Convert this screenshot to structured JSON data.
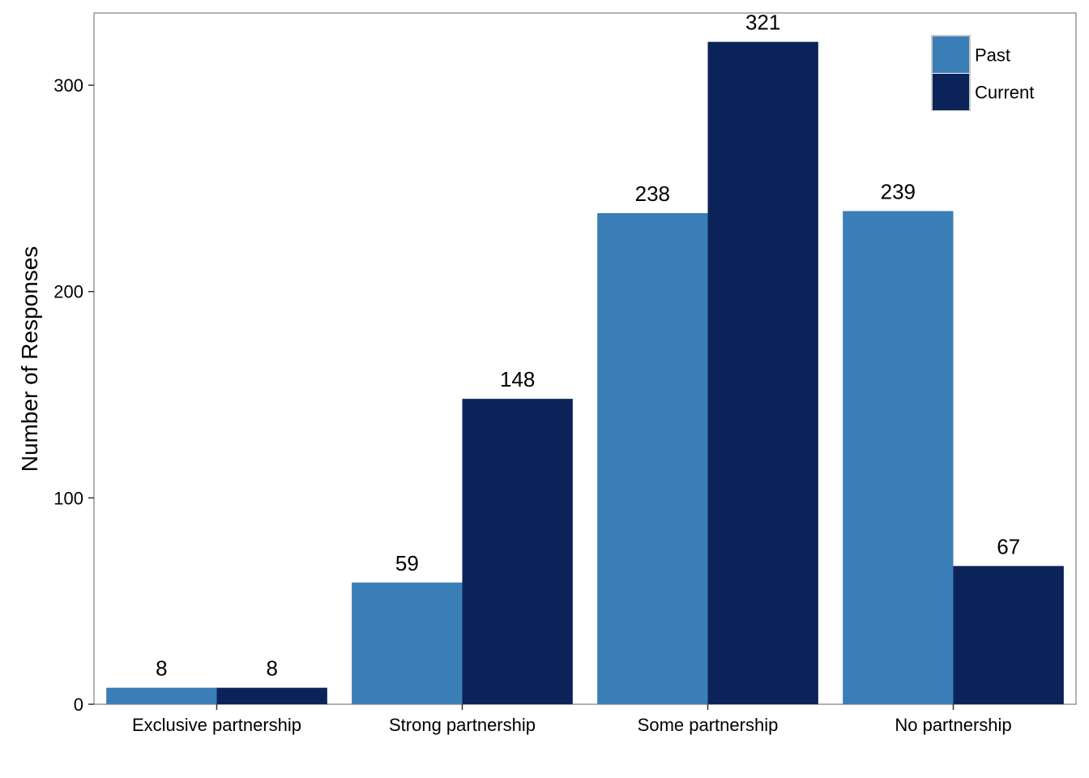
{
  "chart_data": {
    "type": "bar",
    "title": "",
    "xlabel": "",
    "ylabel": "Number of Responses",
    "categories": [
      "Exclusive partnership",
      "Strong partnership",
      "Some partnership",
      "No partnership"
    ],
    "series": [
      {
        "name": "Past",
        "color": "#3a7eb8",
        "values": [
          8,
          59,
          238,
          239
        ]
      },
      {
        "name": "Current",
        "color": "#0c2359",
        "values": [
          8,
          148,
          321,
          67
        ]
      }
    ],
    "ylim": [
      0,
      335
    ],
    "yticks": [
      0,
      100,
      200,
      300
    ],
    "grid": false,
    "legend_position": "top-right",
    "data_labels": true
  }
}
